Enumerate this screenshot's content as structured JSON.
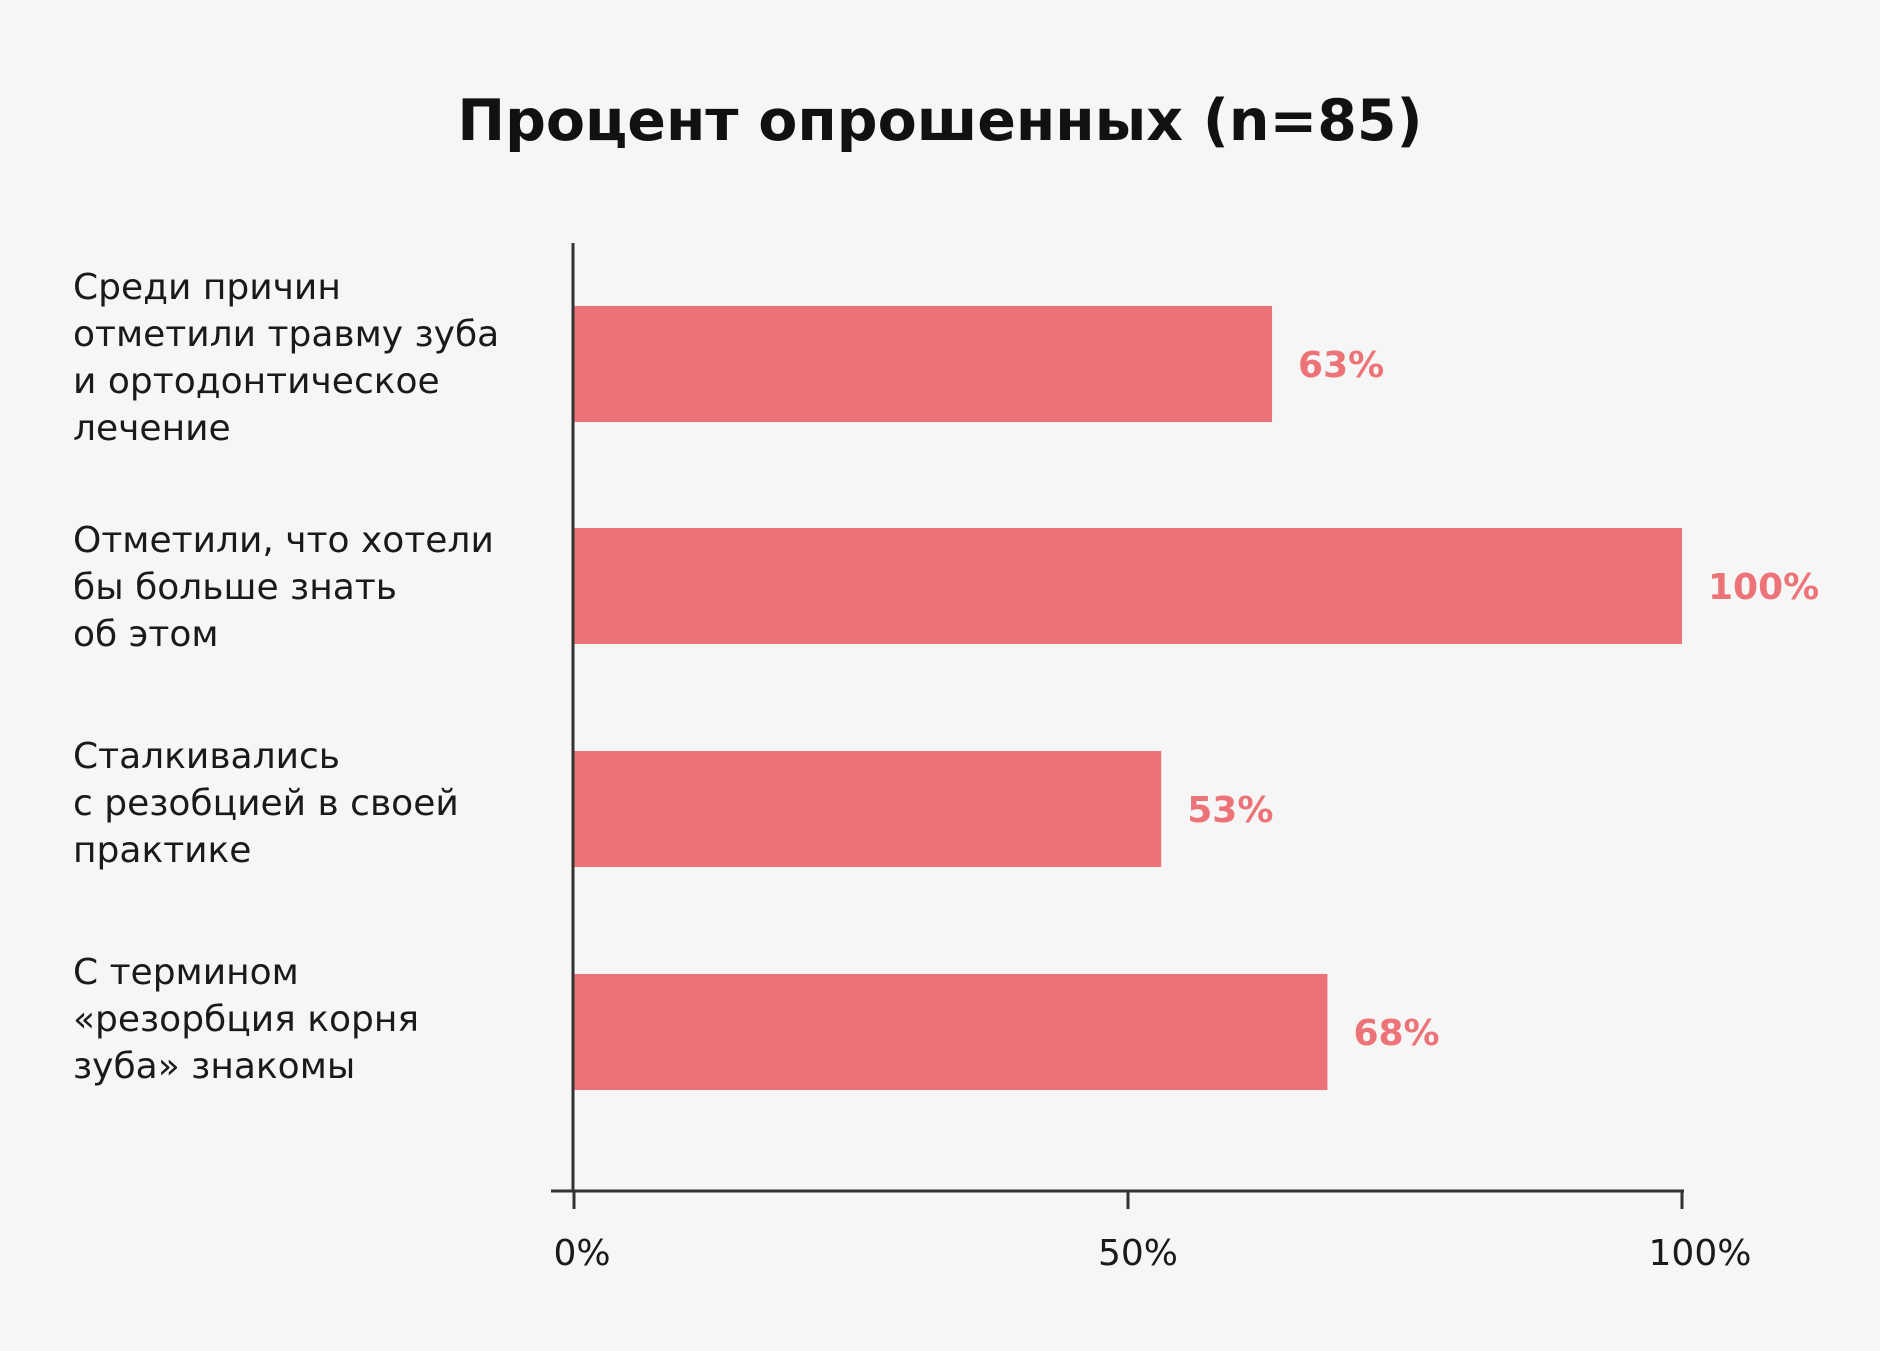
{
  "chart_data": {
    "type": "bar",
    "orientation": "horizontal",
    "title": "Процент опрошенных (n=85)",
    "categories": [
      "Среди причин\nотметили травму зуба\nи ортодонтическое\nлечение",
      "Отметили, что хотели\nбы больше знать\nоб этом",
      "Сталкивались\nс резобцией в своей\nпрактике",
      "С термином\n«резорбция корня\nзуба» знакомы"
    ],
    "values": [
      63,
      100,
      53,
      68
    ],
    "data_labels": [
      "63%",
      "100%",
      "53%",
      "68%"
    ],
    "xlim": [
      0,
      100
    ],
    "x_ticks": [
      0,
      50,
      100
    ],
    "x_tick_labels": [
      "0%",
      "50%",
      "100%"
    ],
    "xlabel": "",
    "ylabel": "",
    "grid": false,
    "legend": "none",
    "colors": {
      "bar": "#ec7478",
      "data_label": "#ec7478",
      "axis": "#333333",
      "text": "#1a1a1a",
      "background": "#f6f6f6"
    }
  }
}
